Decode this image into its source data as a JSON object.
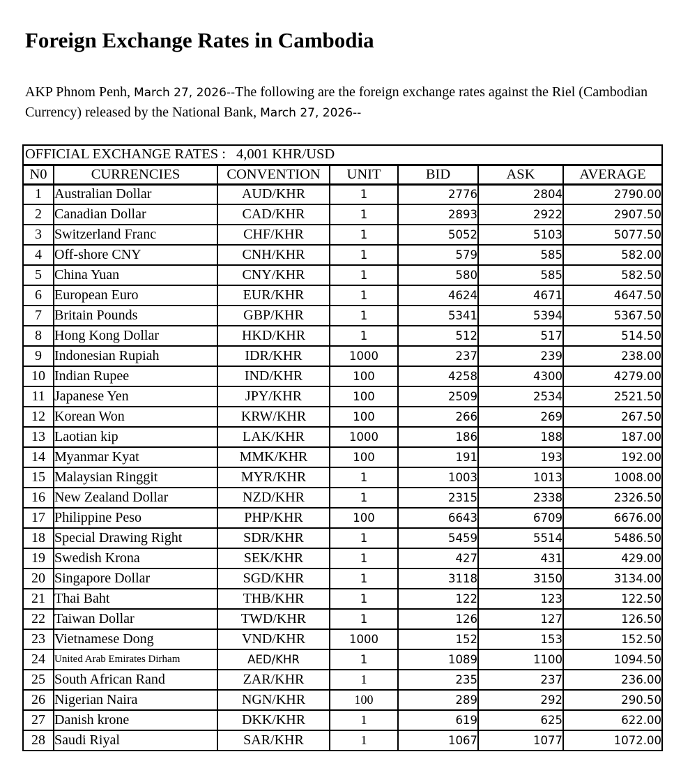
{
  "page": {
    "title": "Foreign Exchange Rates in Cambodia",
    "intro": {
      "prefix": "AKP Phnom Penh, ",
      "date1": "March 27, 2026--",
      "body": "The following are the foreign exchange rates against the Riel (Cambodian Currency) released by the National Bank, ",
      "date2": "March 27, 2026--"
    }
  },
  "banner": {
    "label": "OFFICIAL EXCHANGE RATES :",
    "value": "4,001 KHR/USD"
  },
  "table": {
    "headers": [
      "N0",
      "CURRENCIES",
      "CONVENTION",
      "UNIT",
      "BID",
      "ASK",
      "AVERAGE"
    ],
    "rows": [
      [
        "1",
        "Australian Dollar",
        "AUD/KHR",
        "1",
        "2776",
        "2804",
        "2790.00"
      ],
      [
        "2",
        "Canadian Dollar",
        "CAD/KHR",
        "1",
        "2893",
        "2922",
        "2907.50"
      ],
      [
        "3",
        "Switzerland Franc",
        "CHF/KHR",
        "1",
        "5052",
        "5103",
        "5077.50"
      ],
      [
        "4",
        "Off-shore CNY",
        "CNH/KHR",
        "1",
        "579",
        "585",
        "582.00"
      ],
      [
        "5",
        "China Yuan",
        "CNY/KHR",
        "1",
        "580",
        "585",
        "582.50"
      ],
      [
        "6",
        "European Euro",
        "EUR/KHR",
        "1",
        "4624",
        "4671",
        "4647.50"
      ],
      [
        "7",
        "Britain Pounds",
        "GBP/KHR",
        "1",
        "5341",
        "5394",
        "5367.50"
      ],
      [
        "8",
        "Hong Kong Dollar",
        "HKD/KHR",
        "1",
        "512",
        "517",
        "514.50"
      ],
      [
        "9",
        "Indonesian Rupiah",
        "IDR/KHR",
        "1000",
        "237",
        "239",
        "238.00"
      ],
      [
        "10",
        "Indian Rupee",
        "IND/KHR",
        "100",
        "4258",
        "4300",
        "4279.00"
      ],
      [
        "11",
        "Japanese Yen",
        "JPY/KHR",
        "100",
        "2509",
        "2534",
        "2521.50"
      ],
      [
        "12",
        "Korean Won",
        "KRW/KHR",
        "100",
        "266",
        "269",
        "267.50"
      ],
      [
        "13",
        "Laotian kip",
        "LAK/KHR",
        "1000",
        "186",
        "188",
        "187.00"
      ],
      [
        "14",
        "Myanmar Kyat",
        "MMK/KHR",
        "100",
        "191",
        "193",
        "192.00"
      ],
      [
        "15",
        "Malaysian Ringgit",
        "MYR/KHR",
        "1",
        "1003",
        "1013",
        "1008.00"
      ],
      [
        "16",
        "New Zealand Dollar",
        "NZD/KHR",
        "1",
        "2315",
        "2338",
        "2326.50"
      ],
      [
        "17",
        "Philippine Peso",
        "PHP/KHR",
        "100",
        "6643",
        "6709",
        "6676.00"
      ],
      [
        "18",
        "Special Drawing Right",
        "SDR/KHR",
        "1",
        "5459",
        "5514",
        "5486.50"
      ],
      [
        "19",
        "Swedish Krona",
        "SEK/KHR",
        "1",
        "427",
        "431",
        "429.00"
      ],
      [
        "20",
        "Singapore Dollar",
        "SGD/KHR",
        "1",
        "3118",
        "3150",
        "3134.00"
      ],
      [
        "21",
        "Thai Baht",
        "THB/KHR",
        "1",
        "122",
        "123",
        "122.50"
      ],
      [
        "22",
        "Taiwan Dollar",
        "TWD/KHR",
        "1",
        "126",
        "127",
        "126.50"
      ],
      [
        "23",
        "Vietnamese Dong",
        "VND/KHR",
        "1000",
        "152",
        "153",
        "152.50"
      ],
      [
        "24",
        "United Arab Emirates Dirham",
        "AED/KHR",
        "1",
        "1089",
        "1100",
        "1094.50"
      ],
      [
        "25",
        "South African Rand",
        "ZAR/KHR",
        "1",
        "235",
        "237",
        "236.00"
      ],
      [
        "26",
        "Nigerian Naira",
        "NGN/KHR",
        "100",
        "289",
        "292",
        "290.50"
      ],
      [
        "27",
        "Danish krone",
        "DKK/KHR",
        "1",
        "619",
        "625",
        "622.00"
      ],
      [
        "28",
        "Saudi Riyal",
        "SAR/KHR",
        "1",
        "1067",
        "1077",
        "1072.00"
      ]
    ]
  }
}
